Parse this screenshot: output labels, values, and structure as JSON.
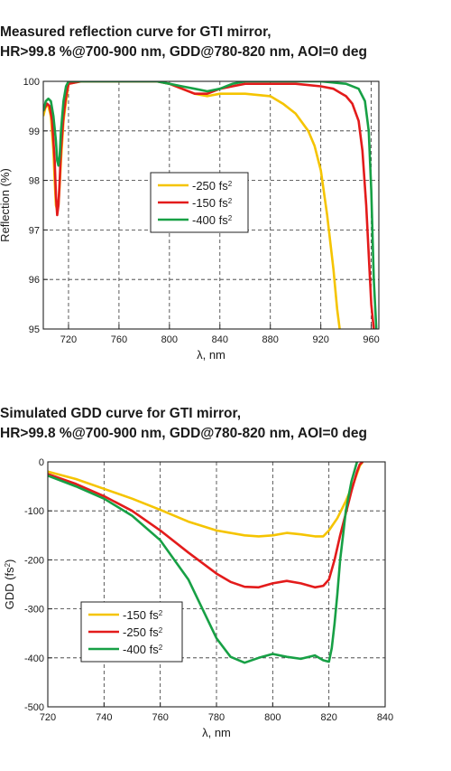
{
  "chart_data": [
    {
      "type": "line",
      "title_lines": [
        "Measured reflection curve for GTI mirror,",
        "HR>99.8 %@700-900 nm, GDD@780-820 nm, AOI=0 deg"
      ],
      "xlabel": "λ, nm",
      "ylabel": "Reflection (%)",
      "xlim": [
        700,
        966
      ],
      "ylim": [
        95,
        100
      ],
      "xticks": [
        720,
        760,
        800,
        840,
        880,
        920,
        960
      ],
      "yticks": [
        95,
        96,
        97,
        98,
        99,
        100
      ],
      "grid": true,
      "grid_style": "dashed",
      "legend_position": "center",
      "series": [
        {
          "name": "-250 fs",
          "sup": "2",
          "color": "#f5c400",
          "x": [
            700,
            702,
            704,
            706,
            708,
            709,
            710,
            711,
            712,
            713,
            714,
            716,
            718,
            720,
            730,
            750,
            770,
            790,
            800,
            810,
            820,
            830,
            840,
            860,
            880,
            890,
            900,
            910,
            915,
            920,
            925,
            930,
            933,
            935
          ],
          "y": [
            99.3,
            99.5,
            99.5,
            99.3,
            98.6,
            98.0,
            97.5,
            97.4,
            97.5,
            97.9,
            98.4,
            99.2,
            99.6,
            99.95,
            100.0,
            100.0,
            100.0,
            100.0,
            99.95,
            99.85,
            99.75,
            99.7,
            99.75,
            99.75,
            99.7,
            99.55,
            99.35,
            99.0,
            98.7,
            98.2,
            97.3,
            96.2,
            95.4,
            95.0
          ]
        },
        {
          "name": "-150 fs",
          "sup": "2",
          "color": "#e31b1b",
          "x": [
            700,
            703,
            705,
            707,
            709,
            710,
            711,
            712,
            713,
            714,
            716,
            718,
            720,
            730,
            750,
            770,
            790,
            800,
            810,
            820,
            830,
            840,
            860,
            880,
            900,
            920,
            930,
            940,
            945,
            950,
            953,
            956,
            958,
            960,
            962
          ],
          "y": [
            99.4,
            99.55,
            99.5,
            99.2,
            98.4,
            97.7,
            97.3,
            97.5,
            98.0,
            98.6,
            99.3,
            99.7,
            99.95,
            100.0,
            100.0,
            100.0,
            100.0,
            99.95,
            99.85,
            99.75,
            99.75,
            99.85,
            99.95,
            99.95,
            99.95,
            99.9,
            99.85,
            99.7,
            99.55,
            99.2,
            98.6,
            97.5,
            96.5,
            95.5,
            95.0
          ]
        },
        {
          "name": "-400 fs",
          "sup": "2",
          "color": "#17a045",
          "x": [
            700,
            702,
            704,
            706,
            708,
            710,
            711,
            712,
            713,
            714,
            716,
            718,
            720,
            730,
            750,
            770,
            790,
            800,
            810,
            820,
            830,
            840,
            850,
            860,
            880,
            900,
            920,
            940,
            950,
            955,
            958,
            960,
            962,
            964
          ],
          "y": [
            99.4,
            99.6,
            99.65,
            99.6,
            99.3,
            98.8,
            98.4,
            98.3,
            98.5,
            99.0,
            99.6,
            99.9,
            100.0,
            100.0,
            100.0,
            100.0,
            100.0,
            99.95,
            99.9,
            99.85,
            99.8,
            99.85,
            99.95,
            100.0,
            100.0,
            100.0,
            100.0,
            99.95,
            99.85,
            99.6,
            99.0,
            97.8,
            96.0,
            95.0
          ]
        }
      ]
    },
    {
      "type": "line",
      "title_lines": [
        "Simulated GDD curve for GTI mirror,",
        "HR>99.8 %@700-900 nm, GDD@780-820 nm, AOI=0 deg"
      ],
      "xlabel": "λ, nm",
      "ylabel": "GDD (fs",
      "ylabel_sup": "2",
      "ylabel_suffix": ")",
      "xlim": [
        720,
        840
      ],
      "ylim": [
        -500,
        0
      ],
      "xticks": [
        720,
        740,
        760,
        780,
        800,
        820,
        840
      ],
      "yticks": [
        0,
        -100,
        -200,
        -300,
        -400,
        -500
      ],
      "grid": true,
      "grid_style": "dashed",
      "legend_position": "bottom-left",
      "series": [
        {
          "name": "-150 fs",
          "sup": "2",
          "color": "#f5c400",
          "x": [
            720,
            730,
            740,
            750,
            760,
            770,
            780,
            790,
            795,
            800,
            805,
            810,
            815,
            818,
            820,
            823,
            826,
            829,
            831,
            832
          ],
          "y": [
            -20,
            -35,
            -55,
            -75,
            -98,
            -122,
            -140,
            -150,
            -152,
            -150,
            -145,
            -148,
            -152,
            -152,
            -140,
            -115,
            -80,
            -40,
            -8,
            0
          ]
        },
        {
          "name": "-250 fs",
          "sup": "2",
          "color": "#e31b1b",
          "x": [
            720,
            730,
            740,
            750,
            760,
            770,
            780,
            785,
            790,
            795,
            800,
            805,
            810,
            815,
            818,
            820,
            822,
            824,
            826,
            828,
            830,
            831,
            832
          ],
          "y": [
            -25,
            -45,
            -70,
            -100,
            -140,
            -185,
            -228,
            -245,
            -255,
            -256,
            -248,
            -243,
            -248,
            -256,
            -253,
            -240,
            -200,
            -150,
            -105,
            -60,
            -20,
            -5,
            0
          ]
        },
        {
          "name": "-400 fs",
          "sup": "2",
          "color": "#17a045",
          "x": [
            720,
            730,
            740,
            750,
            760,
            770,
            775,
            780,
            785,
            790,
            795,
            800,
            805,
            810,
            815,
            818,
            820,
            821,
            822,
            823,
            824,
            825,
            826,
            828,
            830
          ],
          "y": [
            -28,
            -50,
            -75,
            -110,
            -160,
            -240,
            -300,
            -360,
            -398,
            -410,
            -400,
            -392,
            -398,
            -402,
            -395,
            -405,
            -408,
            -380,
            -330,
            -270,
            -200,
            -150,
            -100,
            -40,
            0
          ]
        }
      ]
    }
  ]
}
